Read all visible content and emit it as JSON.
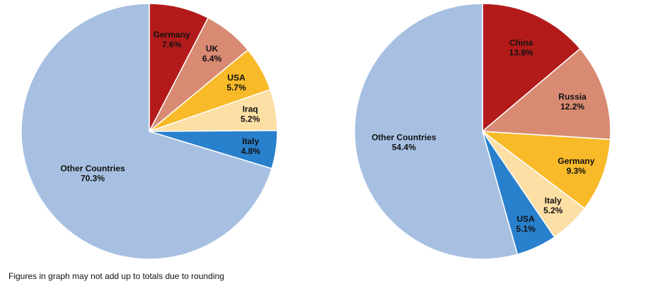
{
  "chart_data": [
    {
      "type": "pie",
      "start_angle_deg": 0,
      "direction": "clockwise",
      "slices": [
        {
          "label": "Germany",
          "value": 7.6,
          "value_label": "7.6%",
          "color": "#B31B1B"
        },
        {
          "label": "UK",
          "value": 6.4,
          "value_label": "6.4%",
          "color": "#D98A73"
        },
        {
          "label": "USA",
          "value": 5.7,
          "value_label": "5.7%",
          "color": "#F8BA29"
        },
        {
          "label": "Iraq",
          "value": 5.2,
          "value_label": "5.2%",
          "color": "#FCDFA4"
        },
        {
          "label": "Italy",
          "value": 4.8,
          "value_label": "4.8%",
          "color": "#2980CC"
        },
        {
          "label": "Other Countries",
          "value": 70.3,
          "value_label": "70.3%",
          "color": "#A7C0E2"
        }
      ]
    },
    {
      "type": "pie",
      "start_angle_deg": 0,
      "direction": "clockwise",
      "slices": [
        {
          "label": "China",
          "value": 13.8,
          "value_label": "13.8%",
          "color": "#B31B1B"
        },
        {
          "label": "Russia",
          "value": 12.2,
          "value_label": "12.2%",
          "color": "#D98A73"
        },
        {
          "label": "Germany",
          "value": 9.3,
          "value_label": "9.3%",
          "color": "#F8BA29"
        },
        {
          "label": "Italy",
          "value": 5.2,
          "value_label": "5.2%",
          "color": "#FCDFA4"
        },
        {
          "label": "USA",
          "value": 5.1,
          "value_label": "5.1%",
          "color": "#2980CC"
        },
        {
          "label": "Other Countries",
          "value": 54.4,
          "value_label": "54.4%",
          "color": "#A7C0E2"
        }
      ]
    }
  ],
  "footnote": "Figures in graph may not add up to totals due to rounding"
}
